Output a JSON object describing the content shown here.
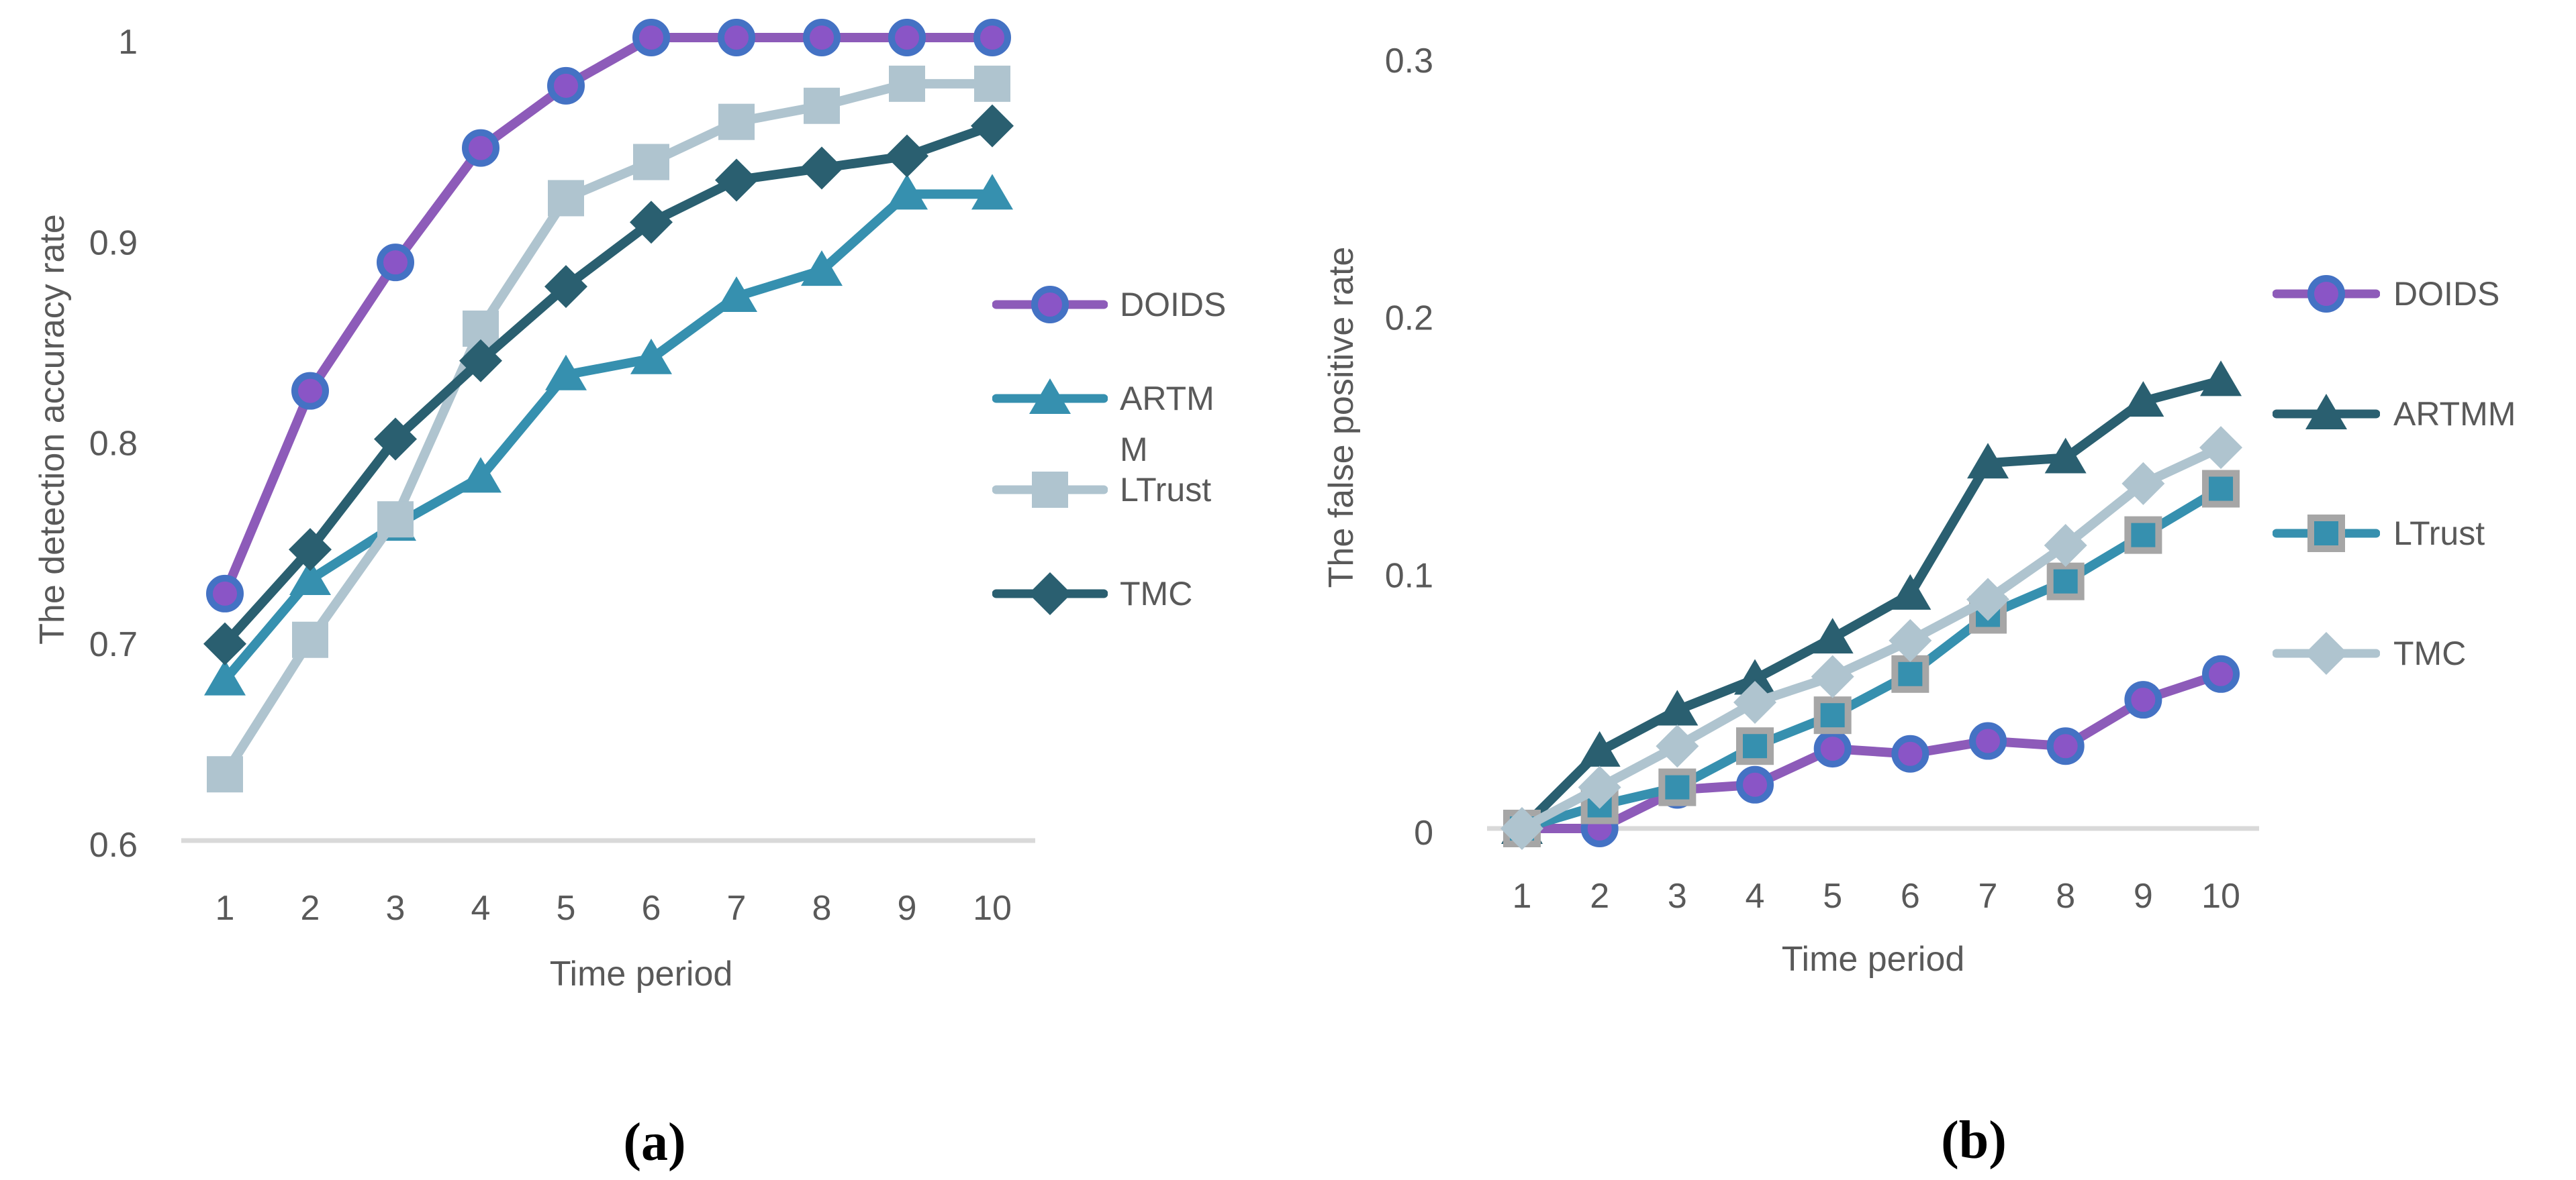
{
  "page": {
    "background": "#FFFFFF",
    "text_color": "#595959",
    "grid_color": "#D9D9D9"
  },
  "colors": {
    "purple_line": "#8D5BB9",
    "purple_marker_fill": "#8A55C6",
    "blue_marker_ring": "#4472C4",
    "teal": "#3690AF",
    "dark_slate_teal": "#2A5F70",
    "light_blue_gray": "#AFC4CF",
    "gray_marker_border": "#A6A6A6",
    "axis_text": "#595959",
    "baseline_grid": "#D9D9D9",
    "caption_text": "#000000"
  },
  "chart_data": [
    {
      "id": "a",
      "caption": "(a)",
      "type": "line",
      "title": "",
      "xlabel": "Time period",
      "ylabel": "The detection accuracy rate",
      "x": [
        1,
        2,
        3,
        4,
        5,
        6,
        7,
        8,
        9,
        10
      ],
      "xtick_labels": [
        "1",
        "2",
        "3",
        "4",
        "5",
        "6",
        "7",
        "8",
        "9",
        "10"
      ],
      "ylim": [
        0.6,
        1.0
      ],
      "yticks": [
        1.0,
        0.9,
        0.8,
        0.7,
        0.6
      ],
      "ytick_labels": [
        "1",
        "0.9",
        "0.8",
        "0.7",
        "0.6"
      ],
      "grid": "baseline only",
      "legend_position": "right",
      "series": [
        {
          "name": "DOIDS",
          "marker": "circle",
          "line_color": "#8D5BB9",
          "marker_fill": "#8A55C6",
          "marker_stroke": "#4472C4",
          "values": [
            0.723,
            0.824,
            0.888,
            0.945,
            0.976,
            1.0,
            1.0,
            1.0,
            1.0,
            1.0
          ]
        },
        {
          "name": "ARTMM",
          "marker": "triangle",
          "line_color": "#3690AF",
          "marker_fill": "#3690AF",
          "marker_stroke": "",
          "values": [
            0.68,
            0.73,
            0.757,
            0.781,
            0.832,
            0.84,
            0.871,
            0.884,
            0.922,
            0.922
          ]
        },
        {
          "name": "LTrust",
          "marker": "square",
          "line_color": "#AFC4CF",
          "marker_fill": "#AFC4CF",
          "marker_stroke": "",
          "values": [
            0.633,
            0.7,
            0.76,
            0.855,
            0.92,
            0.938,
            0.958,
            0.966,
            0.977,
            0.977
          ]
        },
        {
          "name": "TMC",
          "marker": "diamond",
          "line_color": "#2A5F70",
          "marker_fill": "#2A5F70",
          "marker_stroke": "",
          "values": [
            0.698,
            0.745,
            0.8,
            0.839,
            0.876,
            0.908,
            0.929,
            0.935,
            0.941,
            0.956
          ]
        }
      ]
    },
    {
      "id": "b",
      "caption": "(b)",
      "type": "line",
      "title": "",
      "xlabel": "Time period",
      "ylabel": "The false positive rate",
      "x": [
        1,
        2,
        3,
        4,
        5,
        6,
        7,
        8,
        9,
        10
      ],
      "xtick_labels": [
        "1",
        "2",
        "3",
        "4",
        "5",
        "6",
        "7",
        "8",
        "9",
        "10"
      ],
      "ylim": [
        0.0,
        0.3
      ],
      "yticks": [
        0.3,
        0.2,
        0.1,
        0.0
      ],
      "ytick_labels": [
        "0.3",
        "0.2",
        "0.1",
        "0"
      ],
      "grid": "baseline only",
      "legend_position": "right",
      "series": [
        {
          "name": "DOIDS",
          "marker": "circle",
          "line_color": "#8D5BB9",
          "marker_fill": "#8A55C6",
          "marker_stroke": "#4472C4",
          "values": [
            0.0,
            0.0,
            0.015,
            0.017,
            0.031,
            0.029,
            0.034,
            0.032,
            0.05,
            0.06
          ]
        },
        {
          "name": "ARTMM",
          "marker": "triangle",
          "line_color": "#2A5F70",
          "marker_fill": "#2A5F70",
          "marker_stroke": "",
          "values": [
            0.0,
            0.03,
            0.046,
            0.058,
            0.074,
            0.091,
            0.142,
            0.144,
            0.166,
            0.174
          ]
        },
        {
          "name": "LTrust",
          "marker": "square",
          "line_color": "#3690AF",
          "marker_fill": "#3690AF",
          "marker_stroke": "#A6A6A6",
          "values": [
            0.0,
            0.009,
            0.016,
            0.032,
            0.044,
            0.06,
            0.083,
            0.096,
            0.114,
            0.132
          ]
        },
        {
          "name": "TMC",
          "marker": "diamond",
          "line_color": "#AFC4CF",
          "marker_fill": "#AFC4CF",
          "marker_stroke": "",
          "values": [
            0.0,
            0.016,
            0.032,
            0.049,
            0.059,
            0.073,
            0.089,
            0.11,
            0.134,
            0.148
          ]
        }
      ]
    }
  ]
}
